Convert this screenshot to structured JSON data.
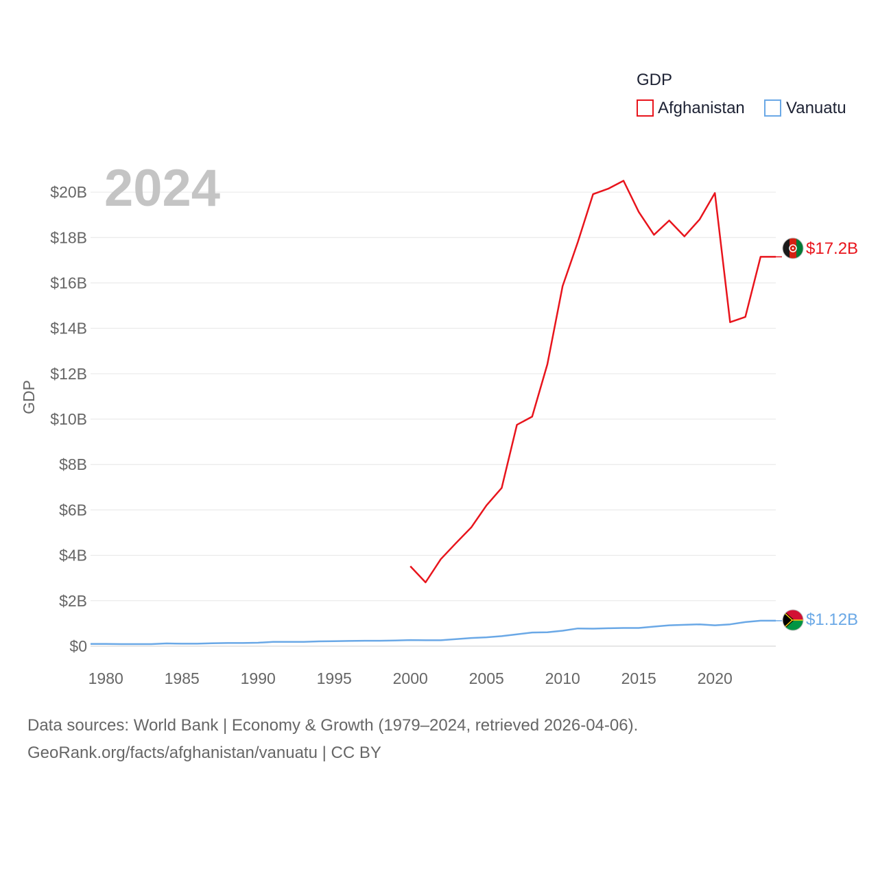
{
  "legend": {
    "title": "GDP",
    "items": [
      {
        "name": "Afghanistan",
        "color": "#e8141c"
      },
      {
        "name": "Vanuatu",
        "color": "#6aa8e6"
      }
    ]
  },
  "year_watermark": "2024",
  "footer": {
    "line1": "Data sources: World Bank | Economy & Growth (1979–2024, retrieved 2026-04-06).",
    "line2": "GeoRank.org/facts/afghanistan/vanuatu | CC BY"
  },
  "end_labels": {
    "afghanistan": "$17.2B",
    "vanuatu": "$1.12B"
  },
  "flags": {
    "afghanistan": "afghanistan-flag-icon",
    "vanuatu": "vanuatu-flag-icon"
  },
  "chart_data": {
    "type": "line",
    "title": "",
    "xlabel": "",
    "ylabel": "GDP",
    "xlim": [
      1979,
      2024
    ],
    "ylim": [
      0,
      21
    ],
    "x_ticks": [
      1980,
      1985,
      1990,
      1995,
      2000,
      2005,
      2010,
      2015,
      2020
    ],
    "y_ticks": [
      {
        "value": 0,
        "label": "$0"
      },
      {
        "value": 2,
        "label": "$2B"
      },
      {
        "value": 4,
        "label": "$4B"
      },
      {
        "value": 6,
        "label": "$6B"
      },
      {
        "value": 8,
        "label": "$8B"
      },
      {
        "value": 10,
        "label": "$10B"
      },
      {
        "value": 12,
        "label": "$12B"
      },
      {
        "value": 14,
        "label": "$14B"
      },
      {
        "value": 16,
        "label": "$16B"
      },
      {
        "value": 18,
        "label": "$18B"
      },
      {
        "value": 20,
        "label": "$20B"
      }
    ],
    "grid": true,
    "series": [
      {
        "name": "Afghanistan",
        "color": "#e8141c",
        "x": [
          2000,
          2001,
          2002,
          2003,
          2004,
          2005,
          2006,
          2007,
          2008,
          2009,
          2010,
          2011,
          2012,
          2013,
          2014,
          2015,
          2016,
          2017,
          2018,
          2019,
          2020,
          2021,
          2022,
          2023,
          2024
        ],
        "values": [
          3.52,
          2.81,
          3.83,
          4.54,
          5.23,
          6.2,
          6.97,
          9.75,
          10.11,
          12.42,
          15.86,
          17.8,
          19.91,
          20.15,
          20.5,
          19.13,
          18.12,
          18.75,
          18.05,
          18.8,
          19.96,
          14.27,
          14.5,
          17.15,
          17.15
        ]
      },
      {
        "name": "Vanuatu",
        "color": "#6aa8e6",
        "x": [
          1979,
          1980,
          1981,
          1982,
          1983,
          1984,
          1985,
          1986,
          1987,
          1988,
          1989,
          1990,
          1991,
          1992,
          1993,
          1994,
          1995,
          1996,
          1997,
          1998,
          1999,
          2000,
          2001,
          2002,
          2003,
          2004,
          2005,
          2006,
          2007,
          2008,
          2009,
          2010,
          2011,
          2012,
          2013,
          2014,
          2015,
          2016,
          2017,
          2018,
          2019,
          2020,
          2021,
          2022,
          2023,
          2024
        ],
        "values": [
          0.1,
          0.1,
          0.09,
          0.09,
          0.09,
          0.12,
          0.11,
          0.11,
          0.13,
          0.14,
          0.14,
          0.15,
          0.19,
          0.19,
          0.19,
          0.21,
          0.22,
          0.23,
          0.24,
          0.24,
          0.25,
          0.27,
          0.26,
          0.26,
          0.31,
          0.36,
          0.39,
          0.44,
          0.52,
          0.6,
          0.61,
          0.68,
          0.78,
          0.77,
          0.79,
          0.8,
          0.8,
          0.86,
          0.92,
          0.94,
          0.96,
          0.92,
          0.96,
          1.06,
          1.12,
          1.12
        ]
      }
    ]
  }
}
